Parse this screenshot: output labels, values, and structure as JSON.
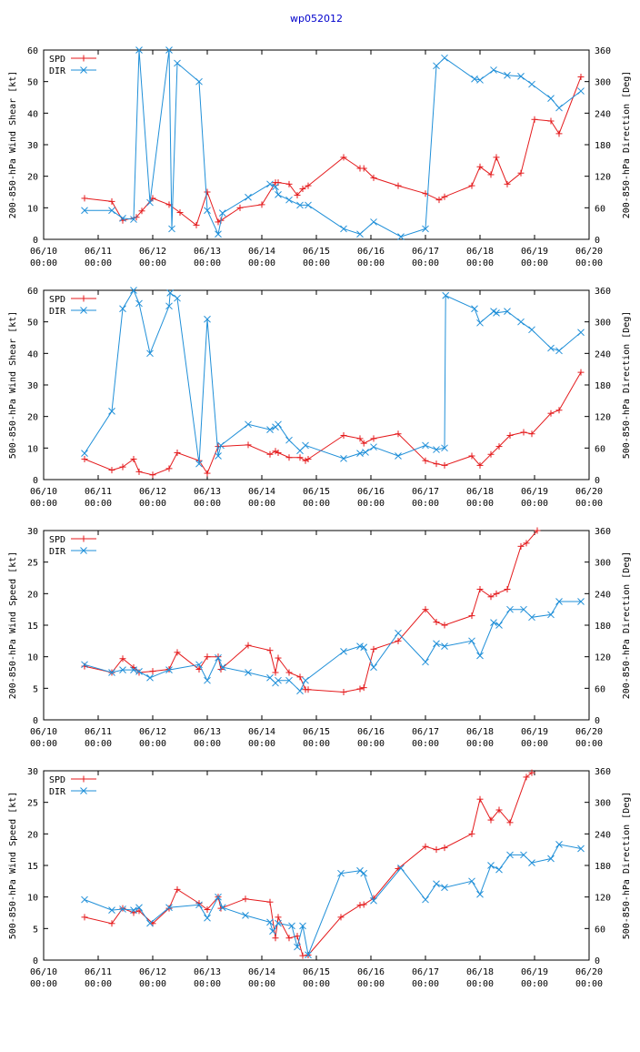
{
  "title": "wp052012",
  "colors": {
    "spd": "#e41a1c",
    "dir": "#1f8fd8",
    "axis": "#000000",
    "title": "#0000cc"
  },
  "x_ticks": [
    {
      "day": 0,
      "date": "06/10",
      "time": "00:00"
    },
    {
      "day": 1,
      "date": "06/11",
      "time": "00:00"
    },
    {
      "day": 2,
      "date": "06/12",
      "time": "00:00"
    },
    {
      "day": 3,
      "date": "06/13",
      "time": "00:00"
    },
    {
      "day": 4,
      "date": "06/14",
      "time": "00:00"
    },
    {
      "day": 5,
      "date": "06/15",
      "time": "00:00"
    },
    {
      "day": 6,
      "date": "06/16",
      "time": "00:00"
    },
    {
      "day": 7,
      "date": "06/17",
      "time": "00:00"
    },
    {
      "day": 8,
      "date": "06/18",
      "time": "00:00"
    },
    {
      "day": 9,
      "date": "06/19",
      "time": "00:00"
    },
    {
      "day": 10,
      "date": "06/20",
      "time": "00:00"
    }
  ],
  "chart_data": [
    {
      "type": "line",
      "id": "shear-200-850",
      "xlabel": "",
      "ylabel": "200-850-hPa Wind Shear [kt]",
      "y2label": "200-850-hPa Direction [Deg]",
      "xlim": [
        0,
        10
      ],
      "ylim": [
        0,
        60
      ],
      "y2lim": [
        0,
        360
      ],
      "yticks": [
        0,
        10,
        20,
        30,
        40,
        50,
        60
      ],
      "y2ticks": [
        0,
        60,
        120,
        180,
        240,
        300,
        360
      ],
      "legend": "top-left",
      "series": [
        {
          "name": "SPD",
          "axis": "left",
          "x": [
            0.75,
            1.25,
            1.45,
            1.7,
            1.8,
            2.0,
            2.3,
            2.5,
            2.8,
            3.0,
            3.2,
            3.25,
            3.6,
            4.0,
            4.25,
            4.3,
            4.5,
            4.65,
            4.75,
            4.85,
            5.5,
            5.8,
            5.87,
            6.05,
            6.5,
            7.0,
            7.25,
            7.35,
            7.85,
            8.0,
            8.2,
            8.3,
            8.5,
            8.75,
            9.0,
            9.3,
            9.45,
            9.85
          ],
          "values": [
            13,
            12,
            6,
            7,
            9,
            13,
            11,
            8.5,
            4.5,
            15,
            5.5,
            6,
            10,
            11,
            18,
            18,
            17.5,
            14,
            16,
            17,
            26,
            22.5,
            22.5,
            19.5,
            17,
            14.5,
            12.5,
            13.5,
            17,
            23,
            20.5,
            26,
            17.5,
            21,
            38,
            37.5,
            33.5,
            51.5
          ]
        },
        {
          "name": "DIR",
          "axis": "right",
          "x": [
            0.75,
            1.25,
            1.45,
            1.65,
            1.75,
            1.95,
            2.3,
            2.35,
            2.45,
            2.85,
            3.0,
            3.2,
            3.28,
            3.75,
            4.15,
            4.25,
            4.3,
            4.5,
            4.7,
            4.85,
            5.5,
            5.8,
            6.05,
            6.55,
            7.0,
            7.2,
            7.35,
            7.9,
            8.0,
            8.25,
            8.5,
            8.75,
            8.95,
            9.3,
            9.45,
            9.85
          ],
          "values": [
            55,
            55,
            40,
            38,
            360,
            70,
            360,
            20,
            335,
            300,
            55,
            10,
            50,
            80,
            105,
            100,
            85,
            75,
            65,
            65,
            20,
            10,
            33,
            5,
            20,
            330,
            345,
            305,
            303,
            322,
            312,
            310,
            295,
            268,
            250,
            282
          ]
        }
      ]
    },
    {
      "type": "line",
      "id": "shear-500-850",
      "xlabel": "",
      "ylabel": "500-850-hPa Wind Shear [kt]",
      "y2label": "500-850-hPa Direction [Deg]",
      "xlim": [
        0,
        10
      ],
      "ylim": [
        0,
        60
      ],
      "y2lim": [
        0,
        360
      ],
      "yticks": [
        0,
        10,
        20,
        30,
        40,
        50,
        60
      ],
      "y2ticks": [
        0,
        60,
        120,
        180,
        240,
        300,
        360
      ],
      "legend": "top-left",
      "series": [
        {
          "name": "SPD",
          "axis": "left",
          "x": [
            0.75,
            1.25,
            1.45,
            1.65,
            1.75,
            2.0,
            2.3,
            2.45,
            2.85,
            3.0,
            3.2,
            3.75,
            4.15,
            4.25,
            4.3,
            4.5,
            4.7,
            4.8,
            4.85,
            5.5,
            5.8,
            5.87,
            6.05,
            6.5,
            7.0,
            7.2,
            7.35,
            7.85,
            8.0,
            8.2,
            8.35,
            8.55,
            8.8,
            8.95,
            9.3,
            9.45,
            9.85
          ],
          "values": [
            6.5,
            3,
            4,
            6.5,
            2.5,
            1.5,
            3.5,
            8.5,
            6,
            2,
            10.5,
            11,
            8,
            9,
            8.5,
            7,
            7,
            6,
            6.5,
            14,
            13,
            11.5,
            13,
            14.5,
            6,
            5,
            4.5,
            7.5,
            4.5,
            8,
            10.5,
            14,
            15,
            14.5,
            21,
            22,
            34
          ]
        },
        {
          "name": "DIR",
          "axis": "right",
          "x": [
            0.75,
            1.25,
            1.45,
            1.65,
            1.75,
            1.95,
            2.3,
            2.32,
            2.45,
            2.85,
            3.0,
            3.2,
            3.25,
            3.75,
            4.15,
            4.25,
            4.3,
            4.5,
            4.7,
            4.8,
            5.5,
            5.8,
            5.9,
            6.05,
            6.5,
            7.0,
            7.2,
            7.35,
            7.37,
            7.9,
            8.0,
            8.25,
            8.3,
            8.5,
            8.75,
            8.95,
            9.3,
            9.45,
            9.85
          ],
          "values": [
            50,
            130,
            325,
            360,
            335,
            240,
            330,
            355,
            345,
            30,
            305,
            45,
            65,
            105,
            95,
            100,
            105,
            75,
            55,
            65,
            40,
            50,
            52,
            62,
            45,
            65,
            57,
            60,
            350,
            325,
            298,
            320,
            317,
            320,
            300,
            285,
            250,
            245,
            280
          ]
        }
      ]
    },
    {
      "type": "line",
      "id": "speed-200-850",
      "xlabel": "",
      "ylabel": "200-850-hPa Wind Speed [kt]",
      "y2label": "200-850-hPa Direction [Deg]",
      "xlim": [
        0,
        10
      ],
      "ylim": [
        0,
        30
      ],
      "y2lim": [
        0,
        360
      ],
      "yticks": [
        0,
        5,
        10,
        15,
        20,
        25,
        30
      ],
      "y2ticks": [
        0,
        60,
        120,
        180,
        240,
        300,
        360
      ],
      "legend": "top-left",
      "series": [
        {
          "name": "SPD",
          "axis": "left",
          "x": [
            0.75,
            1.25,
            1.45,
            1.65,
            1.75,
            2.0,
            2.3,
            2.45,
            2.85,
            3.0,
            3.2,
            3.25,
            3.75,
            4.15,
            4.25,
            4.3,
            4.5,
            4.7,
            4.8,
            4.85,
            5.5,
            5.8,
            5.87,
            6.05,
            6.5,
            7.0,
            7.2,
            7.35,
            7.85,
            8.0,
            8.2,
            8.3,
            8.5,
            8.75,
            8.85,
            9.05
          ],
          "values": [
            8.5,
            7.5,
            9.7,
            8.3,
            7.5,
            7.7,
            8,
            10.7,
            8,
            10,
            10,
            8,
            11.8,
            11,
            7.5,
            9.8,
            7.5,
            6.8,
            4.8,
            4.8,
            4.4,
            4.9,
            5.1,
            11.2,
            12.5,
            17.5,
            15.5,
            15,
            16.5,
            20.7,
            19.5,
            20,
            20.7,
            27.5,
            28,
            30
          ]
        },
        {
          "name": "DIR",
          "axis": "right",
          "x": [
            0.75,
            1.25,
            1.45,
            1.65,
            1.75,
            1.95,
            2.3,
            2.85,
            3.0,
            3.2,
            3.28,
            3.75,
            4.15,
            4.25,
            4.3,
            4.5,
            4.7,
            4.8,
            5.5,
            5.8,
            5.87,
            6.05,
            6.5,
            7.0,
            7.2,
            7.35,
            7.85,
            8.0,
            8.25,
            8.35,
            8.55,
            8.8,
            8.95,
            9.3,
            9.45,
            9.85
          ],
          "values": [
            105,
            90,
            95,
            95,
            92,
            80,
            95,
            105,
            75,
            118,
            100,
            90,
            80,
            70,
            75,
            75,
            55,
            75,
            130,
            140,
            138,
            100,
            165,
            110,
            145,
            140,
            150,
            122,
            185,
            180,
            210,
            210,
            195,
            200,
            225,
            225
          ]
        }
      ]
    },
    {
      "type": "line",
      "id": "speed-500-850",
      "xlabel": "",
      "ylabel": "500-850-hPa Wind Speed [kt]",
      "y2label": "500-850-hPa Direction [Deg]",
      "xlim": [
        0,
        10
      ],
      "ylim": [
        0,
        30
      ],
      "y2lim": [
        0,
        360
      ],
      "yticks": [
        0,
        5,
        10,
        15,
        20,
        25,
        30
      ],
      "y2ticks": [
        0,
        60,
        120,
        180,
        240,
        300,
        360
      ],
      "legend": "top-left",
      "series": [
        {
          "name": "SPD",
          "axis": "left",
          "x": [
            0.75,
            1.25,
            1.45,
            1.65,
            1.75,
            2.0,
            2.3,
            2.45,
            2.85,
            3.0,
            3.2,
            3.25,
            3.7,
            4.15,
            4.25,
            4.3,
            4.5,
            4.65,
            4.75,
            4.85,
            5.45,
            5.8,
            5.87,
            6.05,
            6.5,
            7.0,
            7.2,
            7.35,
            7.85,
            8.0,
            8.2,
            8.35,
            8.55,
            8.85,
            8.95
          ],
          "values": [
            6.8,
            5.8,
            8.2,
            7.5,
            7.8,
            5.8,
            8.2,
            11.2,
            9,
            8,
            10,
            8.2,
            9.7,
            9.2,
            3.5,
            6.8,
            3.5,
            3.8,
            0.7,
            0.8,
            6.8,
            8.7,
            8.8,
            9.8,
            14.5,
            18,
            17.5,
            17.8,
            20,
            25.5,
            22.2,
            23.8,
            21.8,
            29,
            29.7
          ]
        },
        {
          "name": "DIR",
          "axis": "right",
          "x": [
            0.75,
            1.25,
            1.45,
            1.65,
            1.75,
            1.95,
            2.3,
            2.85,
            3.0,
            3.2,
            3.28,
            3.7,
            4.15,
            4.2,
            4.3,
            4.55,
            4.65,
            4.75,
            4.85,
            5.45,
            5.8,
            5.87,
            6.05,
            6.55,
            7.0,
            7.2,
            7.35,
            7.85,
            8.0,
            8.2,
            8.35,
            8.55,
            8.8,
            8.95,
            9.3,
            9.45,
            9.85
          ],
          "values": [
            115,
            95,
            97,
            95,
            100,
            70,
            100,
            105,
            80,
            120,
            100,
            85,
            72,
            55,
            70,
            65,
            25,
            65,
            10,
            165,
            170,
            165,
            113,
            175,
            115,
            145,
            138,
            150,
            125,
            180,
            172,
            200,
            200,
            185,
            193,
            220,
            212
          ]
        }
      ]
    }
  ]
}
